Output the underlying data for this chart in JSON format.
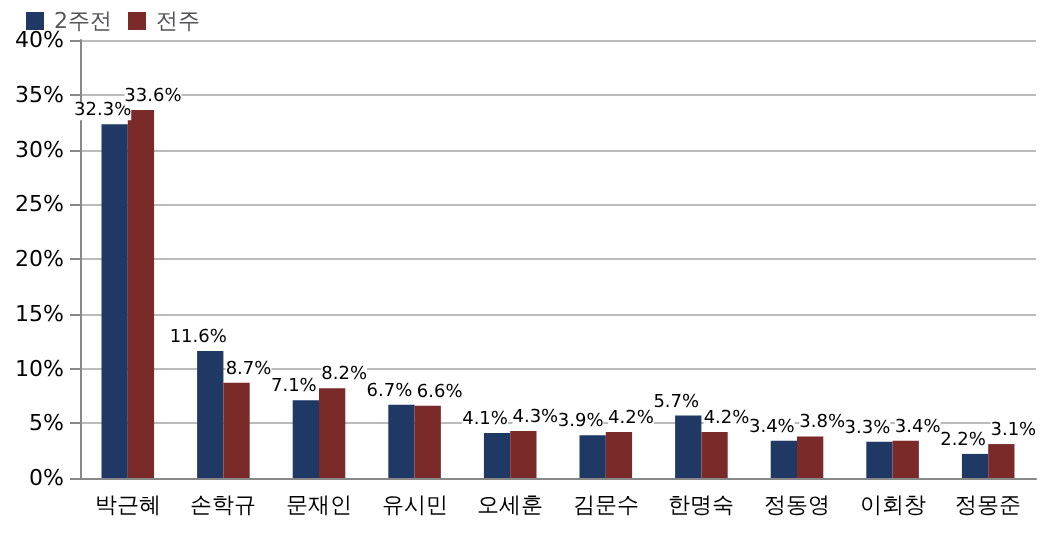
{
  "chart_data": {
    "type": "bar",
    "categories": [
      "박근혜",
      "손학규",
      "문재인",
      "유시민",
      "오세훈",
      "김문수",
      "한명숙",
      "정동영",
      "이회창",
      "정몽준"
    ],
    "series": [
      {
        "name": "2주전",
        "color": "#1f3864",
        "values": [
          32.3,
          11.6,
          7.1,
          6.7,
          4.1,
          3.9,
          5.7,
          3.4,
          3.3,
          2.2
        ],
        "value_labels": [
          "32.3%",
          "11.6%",
          "7.1%",
          "6.7%",
          "4.1%",
          "3.9%",
          "5.7%",
          "3.4%",
          "3.3%",
          "2.2%"
        ]
      },
      {
        "name": "전주",
        "color": "#7b2a2a",
        "values": [
          33.6,
          8.7,
          8.2,
          6.6,
          4.3,
          4.2,
          4.2,
          3.8,
          3.4,
          3.1
        ],
        "value_labels": [
          "33.6%",
          "8.7%",
          "8.2%",
          "6.6%",
          "4.3%",
          "4.2%",
          "4.2%",
          "3.8%",
          "3.4%",
          "3.1%"
        ]
      }
    ],
    "ylim": [
      0,
      40
    ],
    "yticks": [
      {
        "value": 0,
        "label": "0%"
      },
      {
        "value": 5,
        "label": "5%"
      },
      {
        "value": 10,
        "label": "10%"
      },
      {
        "value": 15,
        "label": "15%"
      },
      {
        "value": 20,
        "label": "20%"
      },
      {
        "value": 25,
        "label": "25%"
      },
      {
        "value": 30,
        "label": "30%"
      },
      {
        "value": 35,
        "label": "35%"
      },
      {
        "value": 40,
        "label": "40%"
      }
    ],
    "grid": "y",
    "legend": "top left"
  }
}
